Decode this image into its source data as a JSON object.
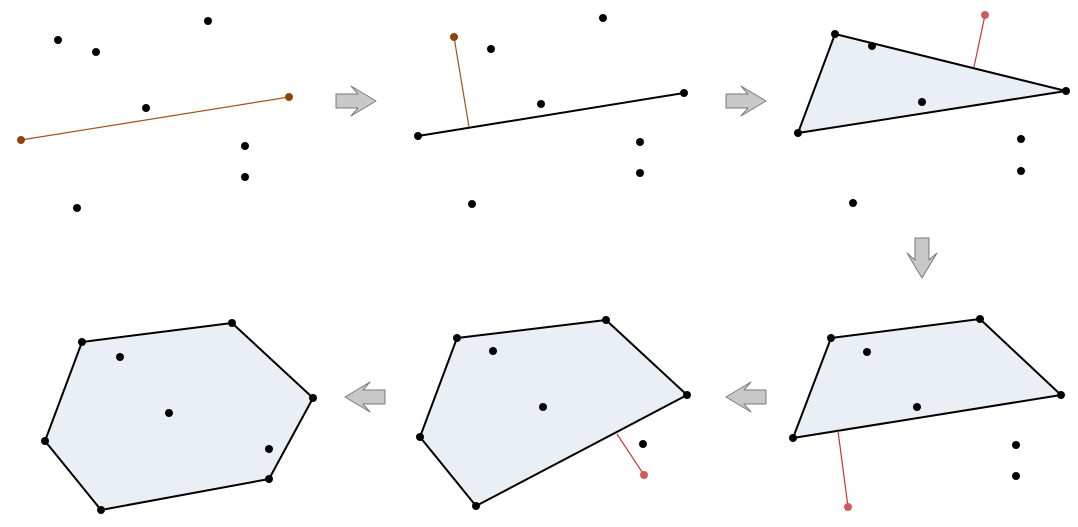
{
  "diagram": {
    "description_free": true,
    "colors": {
      "background": "#ffffff",
      "point": "#000000",
      "hull_fill": "#eaeff5",
      "hull_stroke": "#000000",
      "chosen_line": "#a0541c",
      "chosen_point": "#8b4513",
      "candidate_line": "#c23a3a",
      "candidate_point": "#cd5c5c",
      "arrow_fill": "#c8c8c8",
      "arrow_stroke": "#7a7a7a"
    },
    "panels": [
      {
        "name": "step-1",
        "points": [
          [
            58,
            40
          ],
          [
            96,
            52
          ],
          [
            208,
            21
          ],
          [
            146,
            108
          ],
          [
            245,
            146
          ],
          [
            245,
            177
          ],
          [
            77,
            208
          ]
        ],
        "segment": {
          "from": [
            21,
            140
          ],
          "to": [
            289,
            97
          ],
          "color_key": "chosen_line"
        },
        "highlight_points": [
          [
            21,
            140
          ],
          [
            289,
            97
          ]
        ],
        "highlight_color_key": "chosen_point"
      },
      {
        "name": "step-2",
        "points": [
          [
            491,
            49
          ],
          [
            603,
            18
          ],
          [
            541,
            104
          ],
          [
            640,
            142
          ],
          [
            640,
            173
          ],
          [
            472,
            204
          ]
        ],
        "segment": {
          "from": [
            418,
            136
          ],
          "to": [
            684,
            93
          ],
          "color_key": "hull_stroke"
        },
        "hull_points": [
          [
            418,
            136
          ],
          [
            684,
            93
          ]
        ],
        "perpendicular": {
          "from": [
            454,
            37
          ],
          "to": [
            469,
            127
          ],
          "color_key": "chosen_line"
        },
        "highlight_points": [
          [
            454,
            37
          ]
        ],
        "highlight_color_key": "chosen_point"
      },
      {
        "name": "step-3",
        "polygon": [
          [
            835,
            34
          ],
          [
            1066,
            91
          ],
          [
            798,
            133
          ]
        ],
        "points": [
          [
            872,
            46
          ],
          [
            922,
            102
          ],
          [
            1021,
            139
          ],
          [
            1021,
            171
          ],
          [
            853,
            203
          ]
        ],
        "perpendicular": {
          "from": [
            985,
            15
          ],
          "to": [
            974,
            67
          ],
          "color_key": "candidate_line"
        },
        "highlight_points": [
          [
            985,
            15
          ]
        ],
        "highlight_color_key": "candidate_point"
      },
      {
        "name": "step-4",
        "polygon": [
          [
            831,
            338
          ],
          [
            980,
            319
          ],
          [
            1061,
            395
          ],
          [
            793,
            438
          ]
        ],
        "points": [
          [
            867,
            352
          ],
          [
            917,
            407
          ],
          [
            1016,
            445
          ],
          [
            1016,
            476
          ]
        ],
        "perpendicular": {
          "from": [
            848,
            507
          ],
          "to": [
            838,
            431
          ],
          "color_key": "candidate_line"
        },
        "highlight_points": [
          [
            848,
            507
          ]
        ],
        "highlight_color_key": "candidate_point"
      },
      {
        "name": "step-5",
        "polygon": [
          [
            457,
            338
          ],
          [
            606,
            320
          ],
          [
            687,
            395
          ],
          [
            476,
            506
          ],
          [
            420,
            437
          ]
        ],
        "points": [
          [
            493,
            351
          ],
          [
            543,
            407
          ],
          [
            643,
            444
          ]
        ],
        "perpendicular": {
          "from": [
            644,
            475
          ],
          "to": [
            617,
            434
          ],
          "color_key": "candidate_line"
        },
        "highlight_points": [
          [
            644,
            475
          ]
        ],
        "highlight_color_key": "candidate_point"
      },
      {
        "name": "step-6",
        "polygon": [
          [
            82,
            342
          ],
          [
            232,
            323
          ],
          [
            313,
            398
          ],
          [
            269,
            479
          ],
          [
            101,
            510
          ],
          [
            45,
            441
          ]
        ],
        "points": [
          [
            120,
            357
          ],
          [
            169,
            413
          ],
          [
            269,
            449
          ]
        ]
      }
    ],
    "arrows": [
      {
        "name": "arrow-right-1",
        "direction": "right"
      },
      {
        "name": "arrow-right-2",
        "direction": "right"
      },
      {
        "name": "arrow-down",
        "direction": "down"
      },
      {
        "name": "arrow-left-1",
        "direction": "left"
      },
      {
        "name": "arrow-left-2",
        "direction": "left"
      }
    ]
  }
}
